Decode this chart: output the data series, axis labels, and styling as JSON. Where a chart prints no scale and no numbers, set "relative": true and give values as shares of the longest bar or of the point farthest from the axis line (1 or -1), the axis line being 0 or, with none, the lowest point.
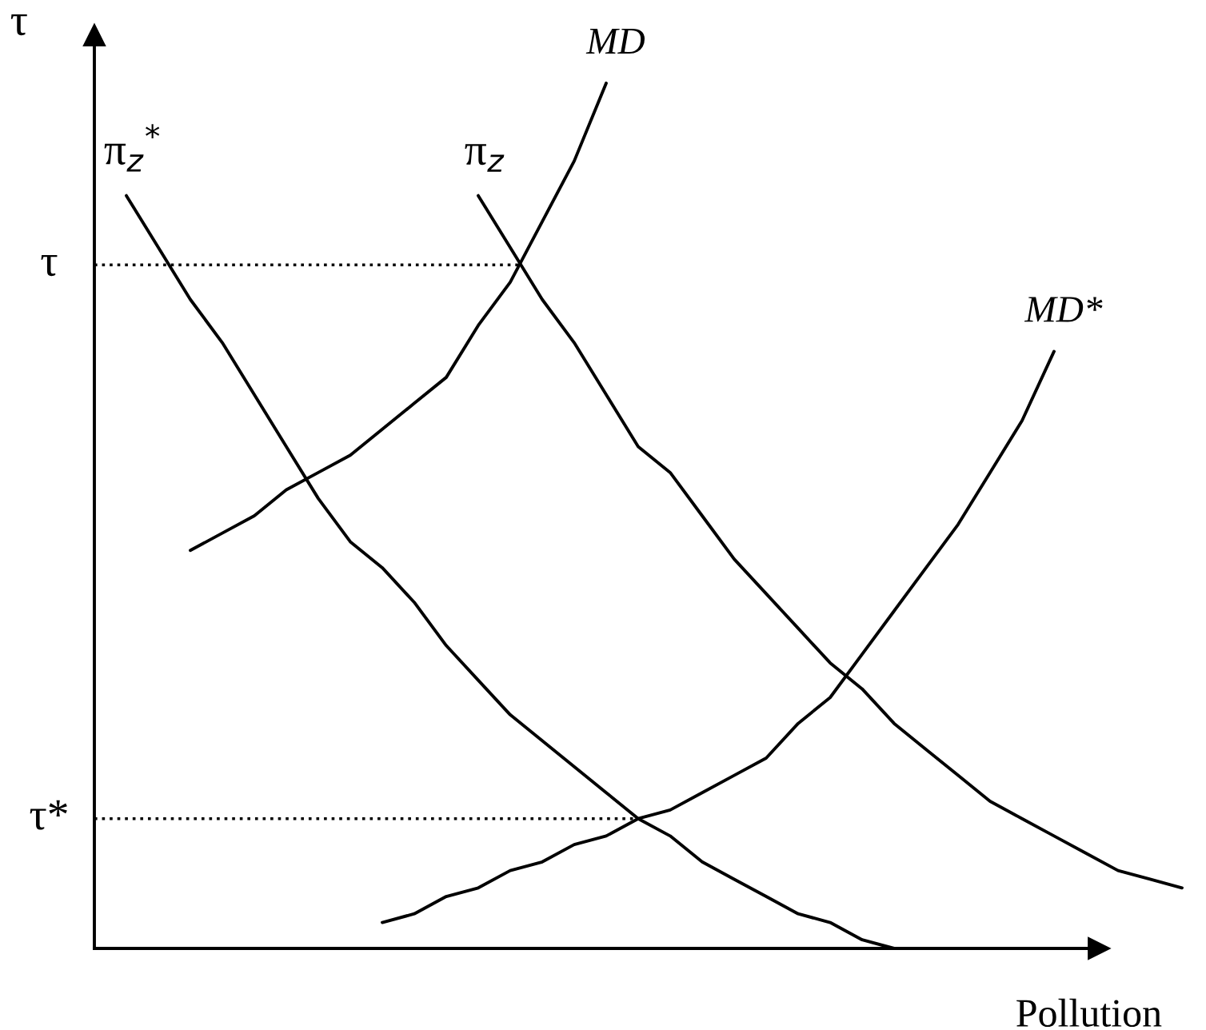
{
  "chart_data": {
    "type": "line",
    "relative": true,
    "xlabel": "Pollution",
    "ylabel": "τ",
    "legend": false,
    "line_style": "solid",
    "categories": [
      null,
      null,
      null,
      null,
      null,
      null,
      null,
      null,
      null,
      null,
      null,
      null,
      null,
      null,
      null,
      null,
      null,
      null,
      null,
      null,
      null,
      null,
      null,
      null,
      null,
      null,
      null,
      null,
      null,
      null,
      null,
      null,
      null,
      null,
      null
    ],
    "series": [
      {
        "name": "π$_{z}$$^{*}$",
        "color": "#000000",
        "values": [
          null,
          0.87,
          0.81,
          0.75,
          0.7,
          0.64,
          0.58,
          0.52,
          0.47,
          0.44,
          0.4,
          0.35,
          0.31,
          0.27,
          0.24,
          0.21,
          0.18,
          0.15,
          0.13,
          0.1,
          0.08,
          0.06,
          0.04,
          0.03,
          0.01,
          0.0,
          null,
          null,
          null,
          null,
          null,
          null,
          null,
          null,
          null
        ]
      },
      {
        "name": "MD",
        "color": "#000000",
        "values": [
          null,
          null,
          null,
          0.46,
          0.48,
          0.5,
          0.53,
          0.55,
          0.57,
          0.6,
          0.63,
          0.66,
          0.72,
          0.77,
          0.84,
          0.91,
          1.0,
          null,
          null,
          null,
          null,
          null,
          null,
          null,
          null,
          null,
          null,
          null,
          null,
          null,
          null,
          null,
          null,
          null,
          null
        ]
      },
      {
        "name": "π$_{z}$",
        "color": "#000000",
        "values": [
          null,
          null,
          null,
          null,
          null,
          null,
          null,
          null,
          null,
          null,
          null,
          null,
          0.87,
          0.81,
          0.75,
          0.7,
          0.64,
          0.58,
          0.55,
          0.5,
          0.45,
          0.41,
          0.37,
          0.33,
          0.3,
          0.26,
          0.23,
          0.2,
          0.17,
          0.15,
          0.13,
          0.11,
          0.09,
          0.08,
          0.07
        ]
      },
      {
        "name": "MD*",
        "color": "#000000",
        "values": [
          null,
          null,
          null,
          null,
          null,
          null,
          null,
          null,
          null,
          0.03,
          0.04,
          0.06,
          0.07,
          0.09,
          0.1,
          0.12,
          0.13,
          0.15,
          0.16,
          0.18,
          0.2,
          0.22,
          0.26,
          0.29,
          0.34,
          0.39,
          0.44,
          0.49,
          0.55,
          0.61,
          0.69,
          null,
          null,
          null,
          null
        ]
      }
    ],
    "ref_lines": [
      {
        "axis": "y",
        "value": 0.79,
        "label": "τ",
        "line_style": "dotted"
      },
      {
        "axis": "y",
        "value": 0.15,
        "label": "τ*",
        "line_style": "dotted"
      }
    ]
  }
}
